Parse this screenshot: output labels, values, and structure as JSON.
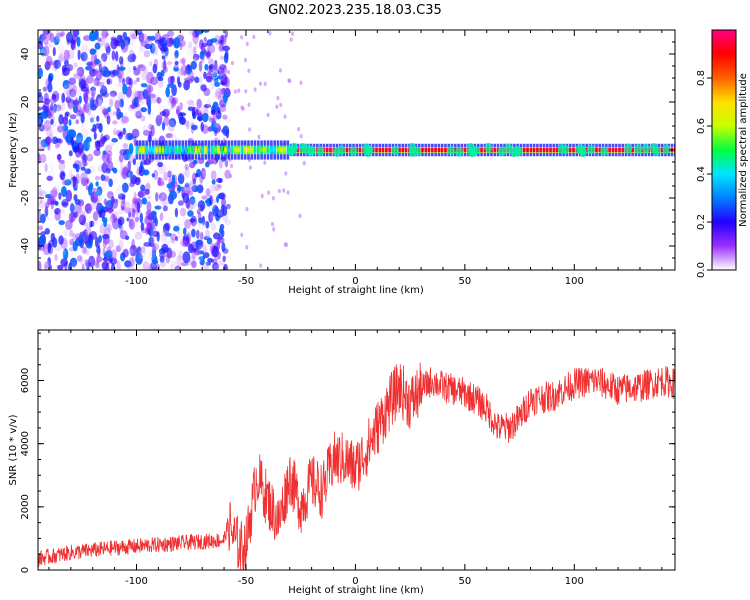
{
  "title": "GN02.2023.235.18.03.C35",
  "chart_data": [
    {
      "type": "heatmap",
      "name": "spectrogram",
      "xlabel": "Height of straight line (km)",
      "ylabel": "Frequency (Hz)",
      "xlim": [
        -145,
        146
      ],
      "ylim": [
        -50,
        50
      ],
      "xticks": [
        -100,
        -50,
        0,
        50,
        100
      ],
      "yticks": [
        -40,
        -20,
        0,
        20,
        40
      ],
      "colorbar": {
        "label": "Normalized spectral amplitude",
        "range": [
          0.0,
          1.0
        ],
        "ticks": [
          0.0,
          0.2,
          0.4,
          0.6,
          0.8
        ],
        "colormap": [
          "#ffffff",
          "#9b30ff",
          "#2200ff",
          "#0080ff",
          "#00e5ff",
          "#00ff40",
          "#c8ff00",
          "#ffe000",
          "#ff6000",
          "#ff0000",
          "#ff0080"
        ]
      },
      "features": {
        "noise_region_km": [
          -145,
          -58
        ],
        "carrier_frequency_hz": 0,
        "carrier_start_km": -100,
        "strong_carrier_start_km": -30,
        "carrier_peak_amplitude": 0.95
      }
    },
    {
      "type": "line",
      "name": "snr",
      "xlabel": "Height of straight line (km)",
      "ylabel": "SNR (10 * v/v)",
      "xlim": [
        -145,
        146
      ],
      "ylim": [
        0,
        7600
      ],
      "xticks": [
        -100,
        -50,
        0,
        50,
        100
      ],
      "yticks": [
        0,
        2000,
        4000,
        6000
      ],
      "color": "#f03030",
      "x": [
        -145,
        -130,
        -110,
        -90,
        -70,
        -60,
        -58,
        -55,
        -52,
        -50,
        -45,
        -40,
        -35,
        -30,
        -25,
        -20,
        -15,
        -10,
        -5,
        0,
        5,
        10,
        15,
        20,
        25,
        30,
        35,
        40,
        45,
        50,
        55,
        60,
        65,
        70,
        75,
        80,
        90,
        100,
        110,
        120,
        130,
        140,
        146
      ],
      "values": [
        350,
        550,
        700,
        800,
        900,
        950,
        1500,
        950,
        700,
        800,
        3000,
        2200,
        1500,
        3000,
        2000,
        2800,
        2500,
        3500,
        3500,
        3200,
        3800,
        4500,
        5200,
        5800,
        5300,
        5700,
        6000,
        5800,
        5700,
        5600,
        5400,
        5100,
        4500,
        4500,
        4800,
        5400,
        5500,
        5900,
        6000,
        5700,
        5800,
        6000,
        5900
      ]
    }
  ]
}
